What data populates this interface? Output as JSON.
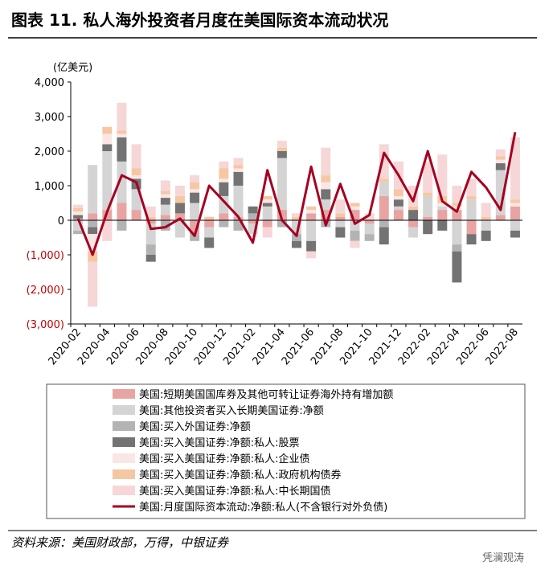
{
  "chart_data": {
    "type": "bar_line",
    "title": "图表 11. 私人海外投资者月度在美国际资本流动状况",
    "y_label": "(亿美元)",
    "source": "资料来源：美国财政部，万得，中银证券",
    "watermark": "凭澜观涛",
    "categories": [
      "2020-02",
      null,
      "2020-04",
      null,
      "2020-06",
      null,
      "2020-08",
      null,
      "2020-10",
      null,
      "2020-12",
      null,
      "2021-02",
      null,
      "2021-04",
      null,
      "2021-06",
      null,
      "2021-08",
      null,
      "2021-10",
      null,
      "2021-12",
      null,
      "2022-02",
      null,
      "2022-04",
      null,
      "2022-06",
      null,
      "2022-08"
    ],
    "ylim": [
      -3000,
      4000
    ],
    "yticks": [
      {
        "value": 4000,
        "label": "4,000"
      },
      {
        "value": 3000,
        "label": "3,000"
      },
      {
        "value": 2000,
        "label": "2,000"
      },
      {
        "value": 1000,
        "label": "1,000"
      },
      0,
      {
        "value": -1000,
        "label": "(1,000)"
      },
      {
        "value": -2000,
        "label": "(2,000)"
      },
      {
        "value": -3000,
        "label": "(3,000)"
      }
    ],
    "series": [
      {
        "name": "美国:短期美国国库券及其他可转让证券海外持有增加额",
        "color": "#e8a3a3",
        "kind": "bar",
        "values": [
          50,
          200,
          300,
          500,
          300,
          -100,
          150,
          200,
          -400,
          -200,
          200,
          100,
          -100,
          -200,
          300,
          0,
          200,
          300,
          100,
          300,
          -100,
          700,
          300,
          -200,
          100,
          300,
          300,
          -400,
          0,
          150,
          400
        ]
      },
      {
        "name": "美国:其他投资者买入长期美国证券:净额",
        "color": "#d4d4d4",
        "kind": "bar",
        "values": [
          -300,
          1400,
          1700,
          1200,
          600,
          -600,
          300,
          -500,
          500,
          -300,
          500,
          900,
          -300,
          400,
          1500,
          -400,
          -600,
          300,
          -200,
          -300,
          -300,
          400,
          100,
          -300,
          600,
          100,
          -700,
          600,
          -300,
          1300,
          -300
        ]
      },
      {
        "name": "美国:买入外国证券:净额",
        "color": "#b3b3b3",
        "kind": "bar",
        "values": [
          -100,
          -200,
          0,
          -300,
          0,
          -300,
          -300,
          0,
          -200,
          0,
          -200,
          -300,
          200,
          0,
          -200,
          -200,
          0,
          -200,
          0,
          -300,
          -200,
          -200,
          0,
          0,
          0,
          0,
          -200,
          0,
          0,
          0,
          0
        ]
      },
      {
        "name": "美国:买入美国证券:净额:私人:股票",
        "color": "#737373",
        "kind": "bar",
        "values": [
          100,
          -200,
          200,
          700,
          300,
          -200,
          200,
          300,
          300,
          -300,
          400,
          400,
          200,
          100,
          200,
          -200,
          -300,
          300,
          -300,
          0,
          0,
          -500,
          200,
          300,
          -400,
          -300,
          -900,
          -300,
          -300,
          200,
          -200
        ]
      },
      {
        "name": "美国:买入美国证券:净额:私人:企业债",
        "color": "#fbe6e6",
        "kind": "bar",
        "values": [
          100,
          -500,
          300,
          100,
          100,
          0,
          100,
          0,
          100,
          0,
          100,
          100,
          -100,
          100,
          0,
          0,
          100,
          200,
          0,
          100,
          0,
          0,
          100,
          0,
          0,
          100,
          100,
          0,
          0,
          100,
          100
        ]
      },
      {
        "name": "美国:买入美国证券:净额:私人:政府机构债券",
        "color": "#f6c7a3",
        "kind": "bar",
        "values": [
          100,
          -300,
          200,
          100,
          200,
          100,
          100,
          200,
          200,
          100,
          300,
          100,
          0,
          100,
          100,
          100,
          100,
          200,
          100,
          100,
          0,
          100,
          200,
          100,
          100,
          200,
          100,
          100,
          100,
          100,
          100
        ]
      },
      {
        "name": "美国:买入美国证券:净额:私人:中长期国债",
        "color": "#f6d6d6",
        "kind": "bar",
        "values": [
          100,
          -1300,
          -600,
          800,
          700,
          300,
          300,
          300,
          200,
          0,
          200,
          200,
          0,
          -300,
          200,
          100,
          -200,
          800,
          400,
          -200,
          200,
          1000,
          800,
          600,
          900,
          1200,
          500,
          500,
          400,
          200,
          1800
        ]
      },
      {
        "name": "美国:月度国际资本流动:净额:私人(不含银行对外负债)",
        "color": "#a50021",
        "kind": "line",
        "values": [
          50,
          -1000,
          250,
          1300,
          1100,
          -250,
          -200,
          50,
          -450,
          1000,
          550,
          100,
          -650,
          1450,
          0,
          -450,
          1550,
          -150,
          1050,
          -100,
          150,
          1950,
          1300,
          550,
          2000,
          550,
          250,
          1400,
          950,
          300,
          2550
        ]
      }
    ]
  }
}
